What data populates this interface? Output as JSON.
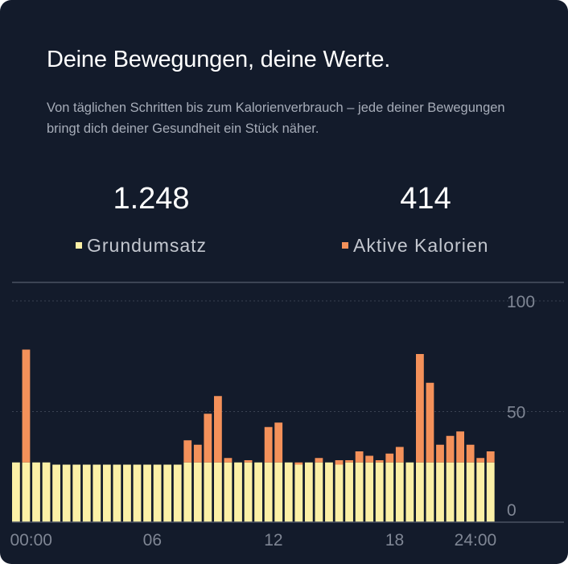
{
  "header": {
    "title": "Deine Bewegungen, deine Werte.",
    "subtitle": "Von täglichen Schritten bis zum Kalorienverbrauch – jede deiner Bewegungen bringt dich deiner Gesundheit ein Stück näher."
  },
  "stats": [
    {
      "value": "1.248",
      "label": "Grundumsatz",
      "color": "#fcf0a6"
    },
    {
      "value": "414",
      "label": "Aktive Kalorien",
      "color": "#f4915a"
    }
  ],
  "chart_data": {
    "type": "bar",
    "stacked": true,
    "bar_count": 48,
    "x_tick_labels": [
      "00:00",
      "06",
      "12",
      "18",
      "24:00"
    ],
    "x_tick_bar_index": [
      1.5,
      13.5,
      25.5,
      37.5,
      45.5
    ],
    "y_tick_labels": [
      "100",
      "50",
      "0"
    ],
    "y_ticks": [
      100,
      50,
      0
    ],
    "ylim": [
      0,
      100
    ],
    "grid": "dotted-horizontal",
    "series": [
      {
        "name": "Grundumsatz",
        "color": "#fcf0a6",
        "values": [
          27,
          27,
          27,
          27,
          26,
          26,
          26,
          26,
          26,
          26,
          26,
          26,
          26,
          26,
          26,
          26,
          26,
          27,
          27,
          27,
          27,
          27,
          27,
          27,
          27,
          27,
          27,
          27,
          26,
          27,
          27,
          27,
          26,
          27,
          27,
          27,
          27,
          27,
          27,
          27,
          27,
          27,
          27,
          27,
          27,
          27,
          27,
          27
        ]
      },
      {
        "name": "Aktive Kalorien",
        "color": "#f4915a",
        "values": [
          0,
          51,
          0,
          0,
          0,
          0,
          0,
          0,
          0,
          0,
          0,
          0,
          0,
          0,
          0,
          0,
          0,
          10,
          8,
          22,
          30,
          2,
          0,
          1,
          0,
          16,
          18,
          0,
          1,
          0,
          2,
          0,
          2,
          1,
          5,
          3,
          1,
          4,
          7,
          0,
          49,
          36,
          8,
          12,
          14,
          8,
          2,
          5
        ]
      }
    ],
    "title": "",
    "xlabel": "",
    "ylabel": ""
  }
}
